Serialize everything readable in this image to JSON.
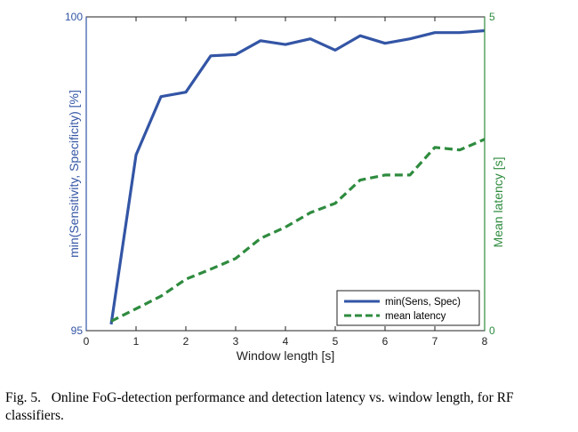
{
  "chart_data": {
    "type": "line",
    "x": [
      0.5,
      1,
      1.5,
      2,
      2.5,
      3,
      3.5,
      4,
      4.5,
      5,
      5.5,
      6,
      6.5,
      7,
      7.5,
      8
    ],
    "xlabel": "Window length [s]",
    "xlim": [
      0,
      8
    ],
    "xticks": [
      "0",
      "1",
      "2",
      "3",
      "4",
      "5",
      "6",
      "7",
      "8"
    ],
    "left_axis": {
      "label": "min(Sensitivity, Specificity) [%]",
      "ylim": [
        95,
        100
      ],
      "ticks": [
        "95",
        "100"
      ],
      "color": "#3355a5"
    },
    "right_axis": {
      "label": "Mean latency [s]",
      "ylim": [
        0,
        5
      ],
      "ticks": [
        "0",
        "5"
      ],
      "color": "#2e8b3e"
    },
    "series": [
      {
        "name": "min(Sens, Spec)",
        "axis": "left",
        "style": "solid",
        "color": "#3355a5",
        "values": [
          95.1,
          97.8,
          98.73,
          98.8,
          99.38,
          99.4,
          99.62,
          99.56,
          99.65,
          99.47,
          99.7,
          99.58,
          99.65,
          99.75,
          99.75,
          99.78
        ]
      },
      {
        "name": "mean latency",
        "axis": "right",
        "style": "dashed",
        "color": "#2e8b3e",
        "values": [
          0.15,
          0.35,
          0.55,
          0.82,
          0.98,
          1.15,
          1.47,
          1.65,
          1.88,
          2.03,
          2.4,
          2.48,
          2.48,
          2.92,
          2.88,
          3.05
        ]
      }
    ],
    "legend_position": "bottom-right",
    "grid": false
  },
  "caption": {
    "label": "Fig. 5.",
    "text": "Online FoG-detection performance and detection latency vs. window length, for RF classifiers."
  }
}
